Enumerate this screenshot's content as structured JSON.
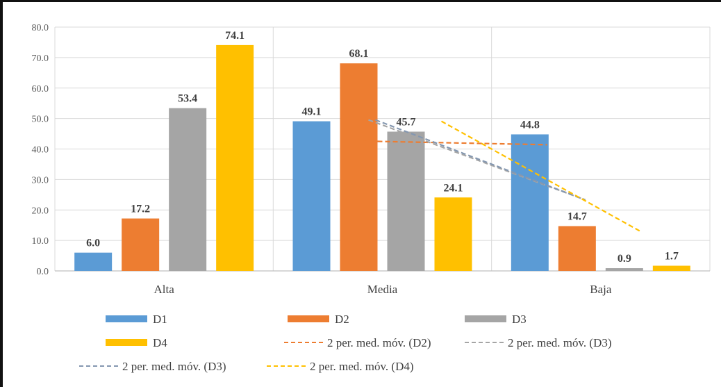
{
  "chart_data": {
    "type": "bar",
    "categories": [
      "Alta",
      "Media",
      "Baja"
    ],
    "series": [
      {
        "name": "D1",
        "values": [
          6.0,
          49.1,
          44.8
        ],
        "color": "#5B9BD5"
      },
      {
        "name": "D2",
        "values": [
          17.2,
          68.1,
          14.7
        ],
        "color": "#ED7D31"
      },
      {
        "name": "D3",
        "values": [
          53.4,
          45.7,
          0.9
        ],
        "color": "#A5A5A5"
      },
      {
        "name": "D4",
        "values": [
          74.1,
          24.1,
          1.7
        ],
        "color": "#FFC000"
      }
    ],
    "trendlines": [
      {
        "name": "2 per. med. móv. (D2)",
        "color": "#ED7D31",
        "points": [
          {
            "x": "Media",
            "y": 42.65
          },
          {
            "x": "Baja",
            "y": 41.4
          }
        ]
      },
      {
        "name": "2 per. med. móv. (D3)",
        "color": "#A5A5A5",
        "points": [
          {
            "x": "Media",
            "y": 49.55
          },
          {
            "x": "Baja",
            "y": 23.3
          }
        ]
      },
      {
        "name": "2 per. med. móv. (D3)",
        "color": "#8497B0",
        "points": [
          {
            "x": "Media",
            "y": 49.55
          },
          {
            "x": "Baja",
            "y": 23.3
          }
        ]
      },
      {
        "name": "2 per. med. móv. (D4)",
        "color": "#FFC000",
        "points": [
          {
            "x": "Media",
            "y": 49.1
          },
          {
            "x": "Baja",
            "y": 12.9
          }
        ]
      }
    ],
    "y_ticks": [
      "0.0",
      "10.0",
      "20.0",
      "30.0",
      "40.0",
      "50.0",
      "60.0",
      "70.0",
      "80.0"
    ],
    "ylim": [
      0,
      80
    ],
    "grid": true,
    "legend_position": "bottom",
    "data_labels": true
  }
}
